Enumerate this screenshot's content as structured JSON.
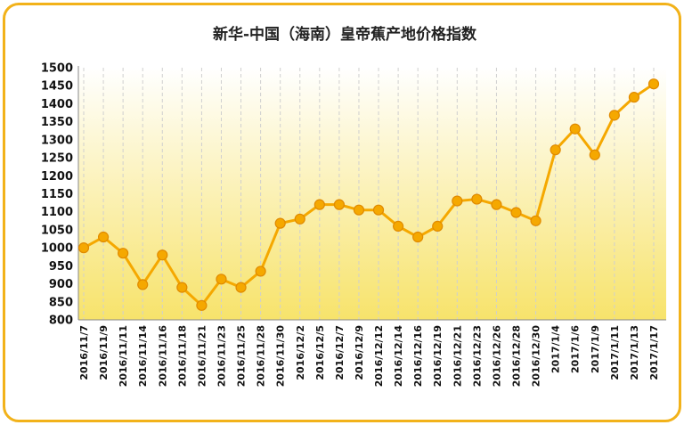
{
  "chart_data": {
    "type": "line",
    "title": "新华-中国（海南）皇帝蕉产地价格指数",
    "xlabel": "",
    "ylabel": "",
    "ylim": [
      800,
      1500
    ],
    "yticks": [
      800,
      850,
      900,
      950,
      1000,
      1050,
      1100,
      1150,
      1200,
      1250,
      1300,
      1350,
      1400,
      1450,
      1500
    ],
    "grid": "vertical-dashed",
    "legend": "none",
    "categories": [
      "2016/11/7",
      "2016/11/9",
      "2016/11/11",
      "2016/11/14",
      "2016/11/16",
      "2016/11/18",
      "2016/11/21",
      "2016/11/23",
      "2016/11/25",
      "2016/11/28",
      "2016/11/30",
      "2016/12/2",
      "2016/12/5",
      "2016/12/7",
      "2016/12/9",
      "2016/12/12",
      "2016/12/14",
      "2016/12/16",
      "2016/12/19",
      "2016/12/21",
      "2016/12/23",
      "2016/12/26",
      "2016/12/28",
      "2016/12/30",
      "2017/1/4",
      "2017/1/6",
      "2017/1/9",
      "2017/1/11",
      "2017/1/13",
      "2017/1/17"
    ],
    "series": [
      {
        "values": [
          1000,
          1030,
          985,
          898,
          980,
          890,
          840,
          913,
          890,
          935,
          1068,
          1080,
          1120,
          1120,
          1105,
          1105,
          1060,
          1030,
          1060,
          1130,
          1135,
          1120,
          1098,
          1075,
          1272,
          1330,
          1258,
          1368,
          1418,
          1455
        ]
      }
    ],
    "colors": {
      "line": "#f5a800",
      "marker": "#f5a800",
      "marker_edge": "#e08a00",
      "fill_top": "#ffffff",
      "fill_bottom": "#f7e36b",
      "border": "#f2b21a"
    }
  }
}
